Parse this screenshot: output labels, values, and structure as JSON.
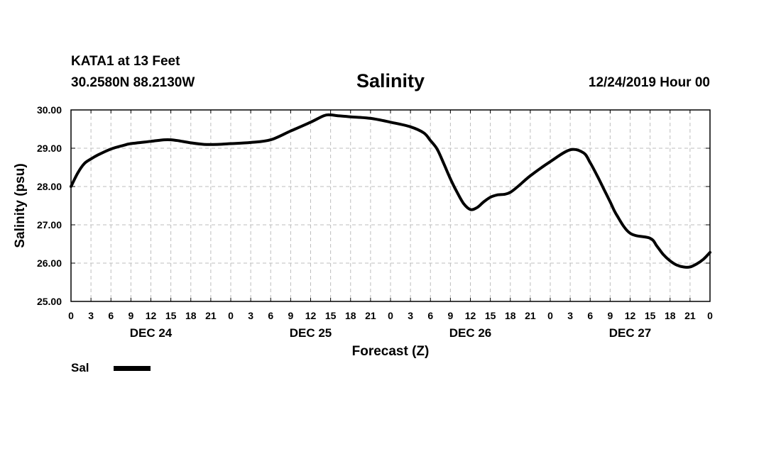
{
  "header": {
    "station": "KATA1 at 13 Feet",
    "coords": "30.2580N 88.2130W",
    "title": "Salinity",
    "datetime": "12/24/2019 Hour 00"
  },
  "legend": {
    "label": "Sal",
    "color": "#000000"
  },
  "chart_data": {
    "type": "line",
    "title": "Salinity",
    "xlabel": "Forecast (Z)",
    "ylabel": "Salinity (psu)",
    "xlim": [
      0,
      96
    ],
    "ylim": [
      25,
      30
    ],
    "grid": true,
    "yticks": [
      "25.00",
      "26.00",
      "27.00",
      "28.00",
      "29.00",
      "30.00"
    ],
    "xtick_hours": [
      0,
      3,
      6,
      9,
      12,
      15,
      18,
      21,
      24,
      27,
      30,
      33,
      36,
      39,
      42,
      45,
      48,
      51,
      54,
      57,
      60,
      63,
      66,
      69,
      72,
      75,
      78,
      81,
      84,
      87,
      90,
      93,
      96
    ],
    "xtick_labels": [
      "0",
      "3",
      "6",
      "9",
      "12",
      "15",
      "18",
      "21",
      "0",
      "3",
      "6",
      "9",
      "12",
      "15",
      "18",
      "21",
      "0",
      "3",
      "6",
      "9",
      "12",
      "15",
      "18",
      "21",
      "0",
      "3",
      "6",
      "9",
      "12",
      "15",
      "18",
      "21",
      "0"
    ],
    "day_labels": [
      {
        "hour": 12,
        "text": "DEC 24"
      },
      {
        "hour": 36,
        "text": "DEC 25"
      },
      {
        "hour": 60,
        "text": "DEC 26"
      },
      {
        "hour": 84,
        "text": "DEC 27"
      }
    ],
    "series": [
      {
        "name": "Sal",
        "color": "#000000",
        "x": [
          0,
          1,
          2,
          3,
          4,
          6,
          8,
          9,
          12,
          14,
          15,
          16,
          18,
          20,
          22,
          24,
          27,
          30,
          33,
          36,
          38,
          39,
          40,
          42,
          45,
          48,
          51,
          53,
          54,
          55,
          56,
          57,
          58,
          59,
          60,
          61,
          62,
          63,
          64,
          66,
          69,
          72,
          75,
          77,
          78,
          79,
          80,
          81,
          82,
          84,
          87,
          88,
          89,
          90,
          91,
          92,
          93,
          94,
          95,
          96
        ],
        "y": [
          28.0,
          28.35,
          28.6,
          28.72,
          28.82,
          28.98,
          29.08,
          29.12,
          29.18,
          29.22,
          29.22,
          29.2,
          29.14,
          29.1,
          29.1,
          29.12,
          29.15,
          29.22,
          29.45,
          29.68,
          29.85,
          29.87,
          29.85,
          29.82,
          29.78,
          29.68,
          29.56,
          29.4,
          29.2,
          28.98,
          28.6,
          28.2,
          27.85,
          27.55,
          27.4,
          27.45,
          27.6,
          27.72,
          27.78,
          27.85,
          28.28,
          28.65,
          28.96,
          28.88,
          28.62,
          28.3,
          27.95,
          27.6,
          27.25,
          26.78,
          26.65,
          26.45,
          26.22,
          26.06,
          25.95,
          25.9,
          25.9,
          25.98,
          26.1,
          26.28
        ]
      }
    ]
  }
}
